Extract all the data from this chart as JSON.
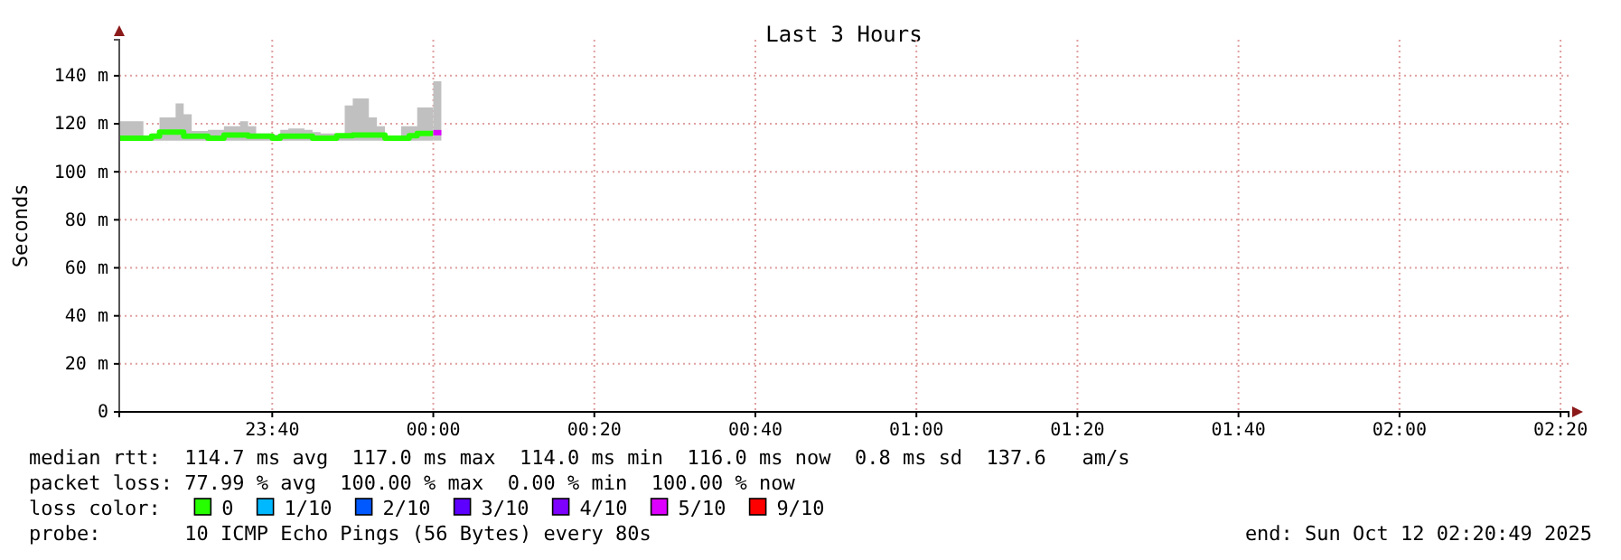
{
  "chart_data": {
    "type": "step",
    "title": "Last 3 Hours",
    "ylabel": "Seconds",
    "legend_title": "loss color:",
    "legend": "bottom",
    "grid": true,
    "xlim": [
      "2025-10-11T23:21",
      "2025-10-12T02:21"
    ],
    "ylim": [
      0,
      155
    ],
    "xticks": [
      {
        "value": "2025-10-11T23:40",
        "label": "23:40"
      },
      {
        "value": "2025-10-12T00:00",
        "label": "00:00"
      },
      {
        "value": "2025-10-12T00:20",
        "label": "00:20"
      },
      {
        "value": "2025-10-12T00:40",
        "label": "00:40"
      },
      {
        "value": "2025-10-12T01:00",
        "label": "01:00"
      },
      {
        "value": "2025-10-12T01:20",
        "label": "01:20"
      },
      {
        "value": "2025-10-12T01:40",
        "label": "01:40"
      },
      {
        "value": "2025-10-12T02:00",
        "label": "02:00"
      },
      {
        "value": "2025-10-12T02:20",
        "label": "02:20"
      }
    ],
    "yticks": [
      0,
      {
        "value": 20,
        "label": "20 m"
      },
      {
        "value": 40,
        "label": "40 m"
      },
      {
        "value": 60,
        "label": "60 m"
      },
      {
        "value": 80,
        "label": "80 m"
      },
      {
        "value": 100,
        "label": "100 m"
      },
      {
        "value": 120,
        "label": "120 m"
      },
      {
        "value": 140,
        "label": "140 m"
      }
    ],
    "series": [
      {
        "name": "0",
        "color": "#26ff00",
        "x": [
          "2025-10-11T23:21",
          "2025-10-11T23:22",
          "2025-10-11T23:24",
          "2025-10-11T23:25",
          "2025-10-11T23:26",
          "2025-10-11T23:28",
          "2025-10-11T23:29",
          "2025-10-11T23:30",
          "2025-10-11T23:32",
          "2025-10-11T23:33",
          "2025-10-11T23:34",
          "2025-10-11T23:36",
          "2025-10-11T23:37",
          "2025-10-11T23:38",
          "2025-10-11T23:40",
          "2025-10-11T23:41",
          "2025-10-11T23:42",
          "2025-10-11T23:44",
          "2025-10-11T23:45",
          "2025-10-11T23:46",
          "2025-10-11T23:48",
          "2025-10-11T23:49",
          "2025-10-11T23:50",
          "2025-10-11T23:52",
          "2025-10-11T23:53",
          "2025-10-11T23:54",
          "2025-10-11T23:56",
          "2025-10-11T23:57",
          "2025-10-11T23:58",
          "2025-10-12T00:00"
        ],
        "values": [
          114,
          114,
          114,
          114.8,
          116.5,
          116.5,
          114.8,
          114.8,
          114,
          114,
          115.3,
          115.3,
          114.8,
          114.8,
          114,
          114.8,
          114.8,
          114.8,
          114,
          114,
          115,
          115,
          115.3,
          115.3,
          115.3,
          114,
          114,
          115,
          116,
          116
        ],
        "lower": [
          113,
          113,
          113,
          113,
          113,
          113,
          113,
          113,
          113,
          113,
          113,
          113,
          113,
          113,
          113,
          113,
          113,
          113,
          113,
          113,
          113,
          113,
          113,
          113,
          113,
          113,
          113,
          113,
          113,
          113
        ],
        "upper": [
          121,
          121,
          115,
          116,
          122.6,
          128.5,
          124,
          117,
          117.5,
          117.5,
          119,
          121,
          119,
          116,
          115.5,
          117.5,
          118,
          117.5,
          116.5,
          116,
          115,
          127.6,
          130.5,
          122.6,
          119,
          115,
          119,
          119,
          126.8,
          126.8
        ]
      },
      {
        "name": "1/10",
        "color": "#00b8ff"
      },
      {
        "name": "2/10",
        "color": "#0059ff"
      },
      {
        "name": "3/10",
        "color": "#5e00ff"
      },
      {
        "name": "4/10",
        "color": "#7e00ff"
      },
      {
        "name": "5/10",
        "color": "#dd00ff",
        "x": [
          "2025-10-12T00:00",
          "2025-10-12T00:01"
        ],
        "values": [
          116.3,
          116.3
        ],
        "lower": [
          113,
          113
        ],
        "upper": [
          137.7,
          137.7
        ]
      },
      {
        "name": "9/10",
        "color": "#ff0000"
      }
    ],
    "annotations": [
      "median rtt:  114.7 ms avg  117.0 ms max  114.0 ms min  116.0 ms now  0.8 ms sd  137.6   am/s",
      "packet loss: 77.99 % avg  100.00 % max  0.00 % min  100.00 % now",
      "probe:       10 ICMP Echo Pings (56 Bytes) every 80s",
      "end: Sun Oct 12 02:20:49 2025"
    ]
  }
}
